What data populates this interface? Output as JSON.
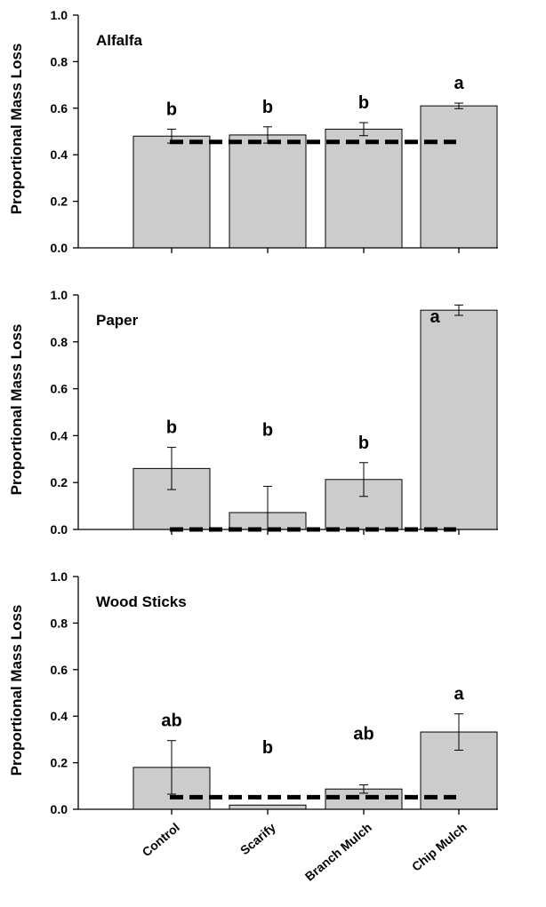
{
  "chart_data": [
    {
      "type": "bar",
      "title": "Alfalfa",
      "ylabel": "Proportional Mass Loss",
      "categories": [
        "Control",
        "Scarify",
        "Branch Mulch",
        "Chip Mulch"
      ],
      "values": [
        0.48,
        0.485,
        0.51,
        0.61
      ],
      "error": [
        0.03,
        0.035,
        0.028,
        0.012
      ],
      "letters": [
        "b",
        "b",
        "b",
        "a"
      ],
      "reference_line": 0.455,
      "ylim": [
        0,
        1.0
      ],
      "yticks": [
        "0.0",
        "0.2",
        "0.4",
        "0.6",
        "0.8",
        "1.0"
      ],
      "bar_color": "#cccccc"
    },
    {
      "type": "bar",
      "title": "Paper",
      "ylabel": "Proportional Mass Loss",
      "categories": [
        "Control",
        "Scarify",
        "Branch Mulch",
        "Chip Mulch"
      ],
      "values": [
        0.26,
        0.072,
        0.213,
        0.935
      ],
      "error": [
        0.09,
        0.112,
        0.072,
        0.022
      ],
      "letters": [
        "b",
        "b",
        "b",
        "a"
      ],
      "reference_line": 0.0,
      "ylim": [
        0,
        1.0
      ],
      "yticks": [
        "0.0",
        "0.2",
        "0.4",
        "0.6",
        "0.8",
        "1.0"
      ],
      "bar_color": "#cccccc"
    },
    {
      "type": "bar",
      "title": "Wood Sticks",
      "ylabel": "Proportional Mass Loss",
      "categories": [
        "Control",
        "Scarify",
        "Branch Mulch",
        "Chip Mulch"
      ],
      "values": [
        0.18,
        0.018,
        0.087,
        0.332
      ],
      "error": [
        0.115,
        0.0,
        0.018,
        0.078
      ],
      "letters": [
        "ab",
        "b",
        "ab",
        "a"
      ],
      "reference_line": 0.052,
      "ylim": [
        0,
        1.0
      ],
      "yticks": [
        "0.0",
        "0.2",
        "0.4",
        "0.6",
        "0.8",
        "1.0"
      ],
      "bar_color": "#cccccc"
    }
  ]
}
